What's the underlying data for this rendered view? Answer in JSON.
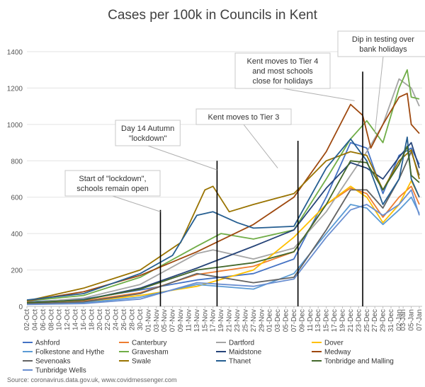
{
  "chart_data": {
    "type": "line",
    "title": "Cases per 100k in Councils in Kent",
    "xlabel": "",
    "ylabel": "",
    "ylim": [
      0,
      1400
    ],
    "yticks": [
      0,
      200,
      400,
      600,
      800,
      1000,
      1200,
      1400
    ],
    "grid": true,
    "legend_position": "bottom",
    "x_tick_labels": [
      "02-Oct",
      "04-Oct",
      "06-Oct",
      "08-Oct",
      "10-Oct",
      "12-Oct",
      "14-Oct",
      "16-Oct",
      "18-Oct",
      "20-Oct",
      "22-Oct",
      "24-Oct",
      "26-Oct",
      "28-Oct",
      "30-Oct",
      "01-Nov",
      "03-Nov",
      "05-Nov",
      "07-Nov",
      "09-Nov",
      "11-Nov",
      "13-Nov",
      "15-Nov",
      "17-Nov",
      "19-Nov",
      "21-Nov",
      "23-Nov",
      "25-Nov",
      "27-Nov",
      "29-Nov",
      "01-Dec",
      "03-Dec",
      "05-Dec",
      "07-Dec",
      "09-Dec",
      "11-Dec",
      "13-Dec",
      "15-Dec",
      "17-Dec",
      "19-Dec",
      "21-Dec",
      "23-Dec",
      "25-Dec",
      "27-Dec",
      "29-Dec",
      "31-Dec",
      "02-Jan",
      "03-Jan",
      "05-Jan",
      "07-Jan"
    ],
    "vertical_markers": [
      {
        "x": "04-Nov",
        "ymin": 0,
        "ymax": 530
      },
      {
        "x": "18-Nov",
        "ymin": 0,
        "ymax": 800
      },
      {
        "x": "08-Dec",
        "ymin": 0,
        "ymax": 910
      },
      {
        "x": "24-Dec",
        "ymin": 0,
        "ymax": 1290
      }
    ],
    "annotations": [
      {
        "lines": [
          "Start of \"lockdown\",",
          "schools remain open"
        ],
        "points_to": {
          "x": "04-Nov",
          "y": 520
        }
      },
      {
        "lines": [
          "Day 14 Autumn",
          "\"lockdown\""
        ],
        "points_to": {
          "x": "18-Nov",
          "y": 750
        }
      },
      {
        "lines": [
          "Kent moves to Tier 3"
        ],
        "points_to": {
          "x": "03-Dec",
          "y": 760
        }
      },
      {
        "lines": [
          "Kent moves to Tier 4",
          "and most  schools",
          "close for holidays"
        ],
        "points_to": {
          "x": "22-Dec",
          "y": 1130
        }
      },
      {
        "lines": [
          "Dip in testing over",
          "bank holidays"
        ],
        "points_to": {
          "x": "27-Dec",
          "y": 950
        }
      }
    ],
    "series": [
      {
        "name": "Ashford",
        "color": "#4472C4",
        "points": [
          [
            "02-Oct",
            25
          ],
          [
            "16-Oct",
            40
          ],
          [
            "30-Oct",
            90
          ],
          [
            "13-Nov",
            145
          ],
          [
            "27-Nov",
            180
          ],
          [
            "07-Dec",
            260
          ],
          [
            "15-Dec",
            600
          ],
          [
            "21-Dec",
            900
          ],
          [
            "25-Dec",
            870
          ],
          [
            "29-Dec",
            620
          ],
          [
            "02-Jan",
            830
          ],
          [
            "05-Jan",
            870
          ],
          [
            "07-Jan",
            780
          ]
        ]
      },
      {
        "name": "Canterbury",
        "color": "#ED7D31",
        "points": [
          [
            "02-Oct",
            22
          ],
          [
            "16-Oct",
            30
          ],
          [
            "30-Oct",
            75
          ],
          [
            "13-Nov",
            175
          ],
          [
            "27-Nov",
            220
          ],
          [
            "07-Dec",
            300
          ],
          [
            "15-Dec",
            560
          ],
          [
            "21-Dec",
            650
          ],
          [
            "25-Dec",
            620
          ],
          [
            "29-Dec",
            490
          ],
          [
            "02-Jan",
            600
          ],
          [
            "05-Jan",
            660
          ],
          [
            "07-Jan",
            560
          ]
        ]
      },
      {
        "name": "Dartford",
        "color": "#A5A5A5",
        "points": [
          [
            "02-Oct",
            20
          ],
          [
            "16-Oct",
            45
          ],
          [
            "30-Oct",
            120
          ],
          [
            "13-Nov",
            290
          ],
          [
            "17-Nov",
            310
          ],
          [
            "27-Nov",
            260
          ],
          [
            "07-Dec",
            320
          ],
          [
            "15-Dec",
            520
          ],
          [
            "21-Dec",
            720
          ],
          [
            "25-Dec",
            850
          ],
          [
            "29-Dec",
            1000
          ],
          [
            "02-Jan",
            1250
          ],
          [
            "05-Jan",
            1200
          ],
          [
            "07-Jan",
            1100
          ]
        ]
      },
      {
        "name": "Dover",
        "color": "#FFC000",
        "points": [
          [
            "02-Oct",
            18
          ],
          [
            "16-Oct",
            25
          ],
          [
            "30-Oct",
            60
          ],
          [
            "13-Nov",
            110
          ],
          [
            "27-Nov",
            200
          ],
          [
            "07-Dec",
            380
          ],
          [
            "15-Dec",
            560
          ],
          [
            "21-Dec",
            660
          ],
          [
            "25-Dec",
            600
          ],
          [
            "29-Dec",
            460
          ],
          [
            "02-Jan",
            560
          ],
          [
            "05-Jan",
            690
          ],
          [
            "07-Jan",
            600
          ]
        ]
      },
      {
        "name": "Folkestone and Hythe",
        "color": "#5B9BD5",
        "points": [
          [
            "02-Oct",
            15
          ],
          [
            "16-Oct",
            20
          ],
          [
            "30-Oct",
            50
          ],
          [
            "13-Nov",
            120
          ],
          [
            "27-Nov",
            95
          ],
          [
            "07-Dec",
            180
          ],
          [
            "15-Dec",
            400
          ],
          [
            "21-Dec",
            560
          ],
          [
            "25-Dec",
            540
          ],
          [
            "29-Dec",
            450
          ],
          [
            "02-Jan",
            530
          ],
          [
            "05-Jan",
            600
          ],
          [
            "07-Jan",
            510
          ]
        ]
      },
      {
        "name": "Gravesham",
        "color": "#70AD47",
        "points": [
          [
            "02-Oct",
            30
          ],
          [
            "16-Oct",
            60
          ],
          [
            "30-Oct",
            160
          ],
          [
            "13-Nov",
            330
          ],
          [
            "19-Nov",
            400
          ],
          [
            "27-Nov",
            370
          ],
          [
            "07-Dec",
            420
          ],
          [
            "15-Dec",
            700
          ],
          [
            "21-Dec",
            920
          ],
          [
            "25-Dec",
            1020
          ],
          [
            "29-Dec",
            900
          ],
          [
            "02-Jan",
            1200
          ],
          [
            "04-Jan",
            1300
          ],
          [
            "05-Jan",
            1150
          ],
          [
            "07-Jan",
            1140
          ]
        ]
      },
      {
        "name": "Maidstone",
        "color": "#264478",
        "points": [
          [
            "02-Oct",
            20
          ],
          [
            "16-Oct",
            35
          ],
          [
            "30-Oct",
            100
          ],
          [
            "13-Nov",
            210
          ],
          [
            "27-Nov",
            330
          ],
          [
            "07-Dec",
            420
          ],
          [
            "15-Dec",
            650
          ],
          [
            "21-Dec",
            790
          ],
          [
            "25-Dec",
            760
          ],
          [
            "29-Dec",
            700
          ],
          [
            "02-Jan",
            820
          ],
          [
            "05-Jan",
            900
          ],
          [
            "07-Jan",
            760
          ]
        ]
      },
      {
        "name": "Medway",
        "color": "#9E480E",
        "points": [
          [
            "02-Oct",
            30
          ],
          [
            "16-Oct",
            80
          ],
          [
            "30-Oct",
            170
          ],
          [
            "13-Nov",
            300
          ],
          [
            "27-Nov",
            450
          ],
          [
            "07-Dec",
            600
          ],
          [
            "15-Dec",
            850
          ],
          [
            "21-Dec",
            1110
          ],
          [
            "24-Dec",
            1050
          ],
          [
            "26-Dec",
            870
          ],
          [
            "29-Dec",
            1000
          ],
          [
            "02-Jan",
            1150
          ],
          [
            "04-Jan",
            1170
          ],
          [
            "05-Jan",
            1000
          ],
          [
            "07-Jan",
            950
          ]
        ]
      },
      {
        "name": "Sevenoaks",
        "color": "#636363",
        "points": [
          [
            "02-Oct",
            15
          ],
          [
            "16-Oct",
            25
          ],
          [
            "30-Oct",
            70
          ],
          [
            "13-Nov",
            180
          ],
          [
            "27-Nov",
            130
          ],
          [
            "07-Dec",
            160
          ],
          [
            "15-Dec",
            420
          ],
          [
            "21-Dec",
            640
          ],
          [
            "25-Dec",
            640
          ],
          [
            "29-Dec",
            540
          ],
          [
            "02-Jan",
            700
          ],
          [
            "05-Jan",
            850
          ],
          [
            "07-Jan",
            720
          ]
        ]
      },
      {
        "name": "Swale",
        "color": "#997300",
        "points": [
          [
            "02-Oct",
            30
          ],
          [
            "16-Oct",
            100
          ],
          [
            "30-Oct",
            200
          ],
          [
            "09-Nov",
            350
          ],
          [
            "15-Nov",
            640
          ],
          [
            "17-Nov",
            660
          ],
          [
            "21-Nov",
            520
          ],
          [
            "27-Nov",
            560
          ],
          [
            "07-Dec",
            620
          ],
          [
            "15-Dec",
            800
          ],
          [
            "21-Dec",
            850
          ],
          [
            "25-Dec",
            830
          ],
          [
            "29-Dec",
            640
          ],
          [
            "02-Jan",
            800
          ],
          [
            "05-Jan",
            860
          ],
          [
            "07-Jan",
            700
          ]
        ]
      },
      {
        "name": "Thanet",
        "color": "#255E91",
        "points": [
          [
            "02-Oct",
            35
          ],
          [
            "16-Oct",
            70
          ],
          [
            "30-Oct",
            180
          ],
          [
            "07-Nov",
            280
          ],
          [
            "13-Nov",
            500
          ],
          [
            "17-Nov",
            520
          ],
          [
            "23-Nov",
            460
          ],
          [
            "27-Nov",
            430
          ],
          [
            "07-Dec",
            440
          ],
          [
            "15-Dec",
            760
          ],
          [
            "21-Dec",
            920
          ],
          [
            "25-Dec",
            800
          ],
          [
            "29-Dec",
            560
          ],
          [
            "02-Jan",
            700
          ],
          [
            "04-Jan",
            930
          ],
          [
            "05-Jan",
            700
          ],
          [
            "07-Jan",
            600
          ]
        ]
      },
      {
        "name": "Tonbridge and Malling",
        "color": "#43682B",
        "points": [
          [
            "02-Oct",
            20
          ],
          [
            "16-Oct",
            35
          ],
          [
            "30-Oct",
            95
          ],
          [
            "13-Nov",
            200
          ],
          [
            "27-Nov",
            240
          ],
          [
            "07-Dec",
            300
          ],
          [
            "15-Dec",
            560
          ],
          [
            "21-Dec",
            800
          ],
          [
            "25-Dec",
            790
          ],
          [
            "29-Dec",
            640
          ],
          [
            "02-Jan",
            780
          ],
          [
            "04-Jan",
            880
          ],
          [
            "05-Jan",
            720
          ],
          [
            "07-Jan",
            680
          ]
        ]
      },
      {
        "name": "Tunbridge Wells",
        "color": "#698ED0",
        "points": [
          [
            "02-Oct",
            10
          ],
          [
            "16-Oct",
            15
          ],
          [
            "30-Oct",
            40
          ],
          [
            "13-Nov",
            130
          ],
          [
            "27-Nov",
            110
          ],
          [
            "07-Dec",
            150
          ],
          [
            "15-Dec",
            380
          ],
          [
            "21-Dec",
            530
          ],
          [
            "25-Dec",
            560
          ],
          [
            "29-Dec",
            500
          ],
          [
            "02-Jan",
            560
          ],
          [
            "05-Jan",
            640
          ],
          [
            "07-Jan",
            500
          ]
        ]
      }
    ],
    "source_text": "Source: coronavirus.data.gov.uk, www.covidmessenger.com"
  }
}
